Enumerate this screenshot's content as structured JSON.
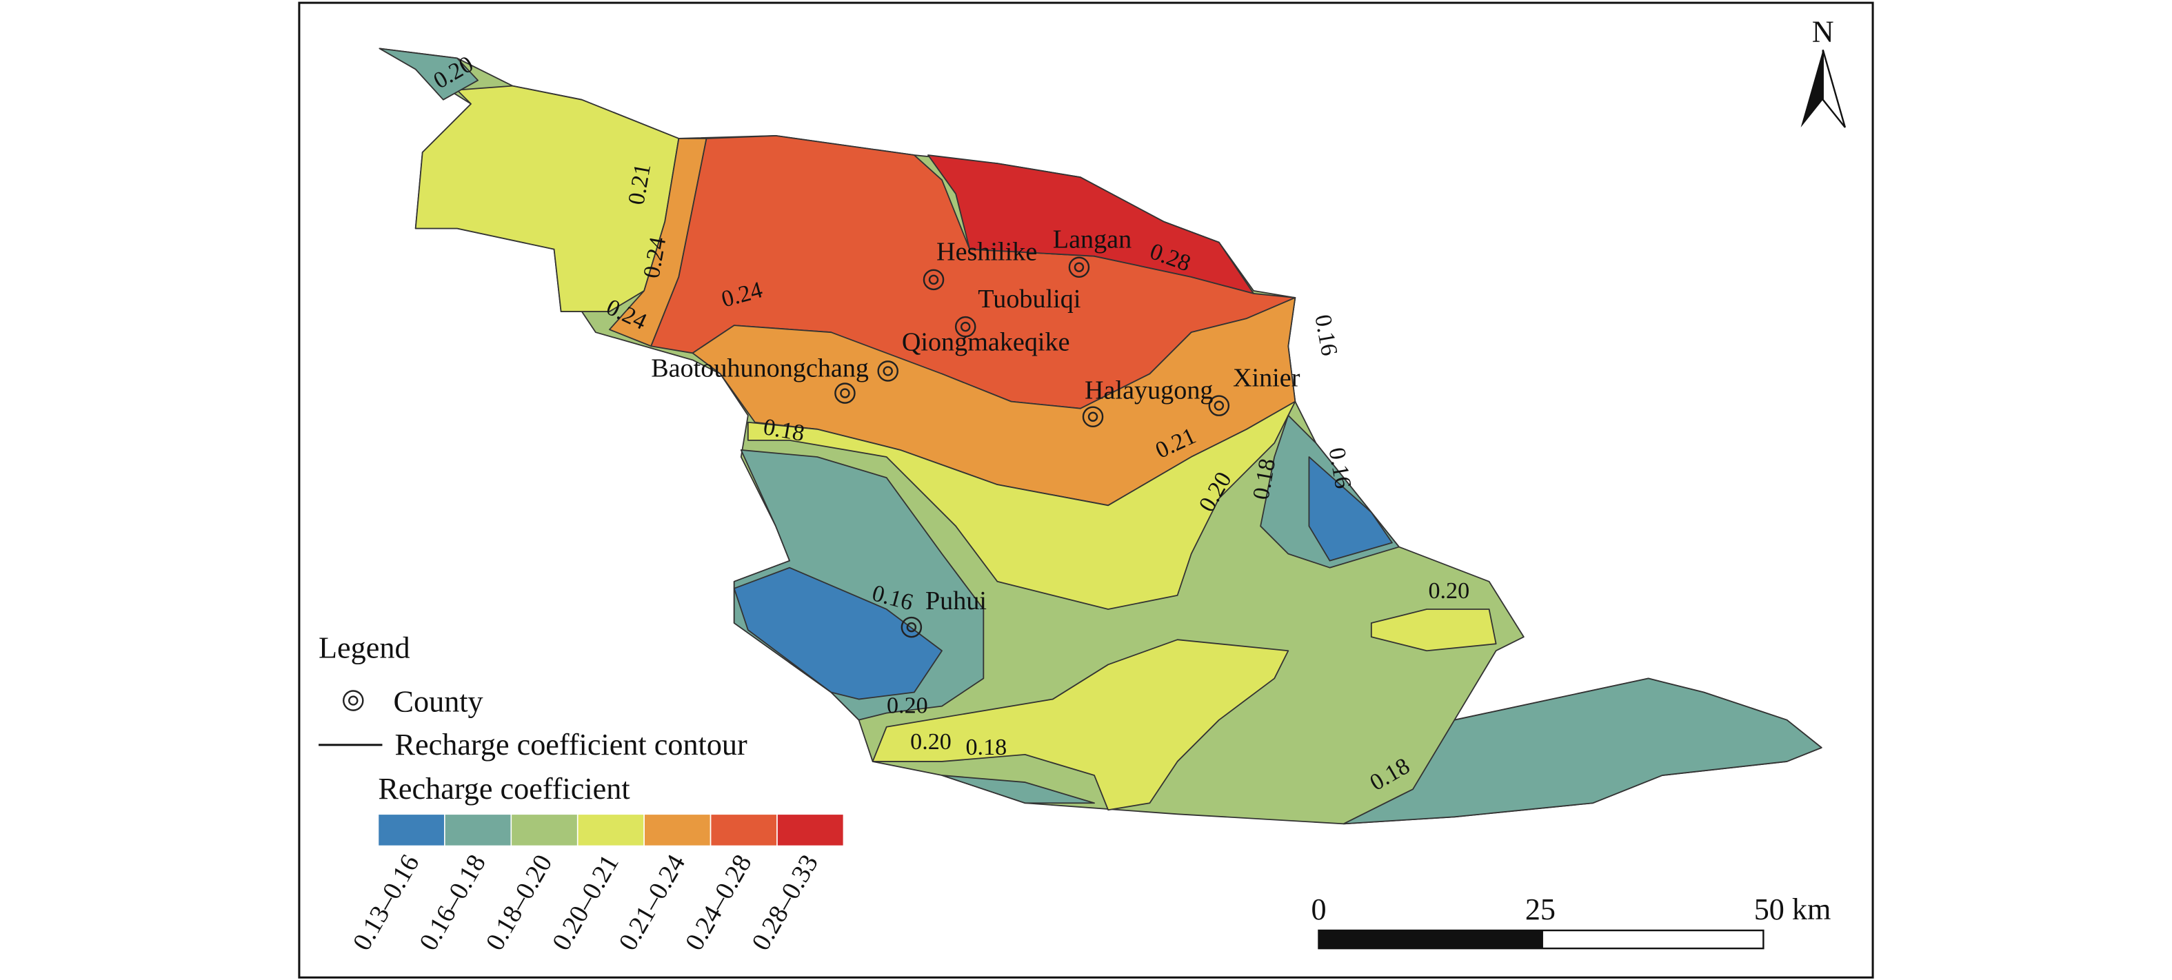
{
  "map": {
    "north": "N",
    "counties": [
      "Heshilike",
      "Langan",
      "Tuobuliqi",
      "Qiongmakeqike",
      "Baotouhunongchang",
      "Halayugong",
      "Xinier",
      "Puhui"
    ],
    "contour_labels": [
      "0.20",
      "0.21",
      "0.24",
      "0.24",
      "0.24",
      "0.28",
      "0.18",
      "0.21",
      "0.20",
      "0.18",
      "0.16",
      "0.16",
      "0.20",
      "0.16",
      "0.20",
      "0.20",
      "0.18",
      "0.18"
    ],
    "legend": {
      "title": "Legend",
      "items": [
        "County",
        "Recharge coefficient contour"
      ],
      "ramp_title": "Recharge coefficient",
      "classes": [
        {
          "label": "0.13–0.16",
          "color": "#3d80b8"
        },
        {
          "label": "0.16–0.18",
          "color": "#73a99c"
        },
        {
          "label": "0.18–0.20",
          "color": "#a7c679"
        },
        {
          "label": "0.20–0.21",
          "color": "#dde55e"
        },
        {
          "label": "0.21–0.24",
          "color": "#e8993f"
        },
        {
          "label": "0.24–0.28",
          "color": "#e35a36"
        },
        {
          "label": "0.28–0.33",
          "color": "#d3292b"
        }
      ]
    },
    "scale_bar": [
      "0",
      "25",
      "50 km"
    ]
  }
}
